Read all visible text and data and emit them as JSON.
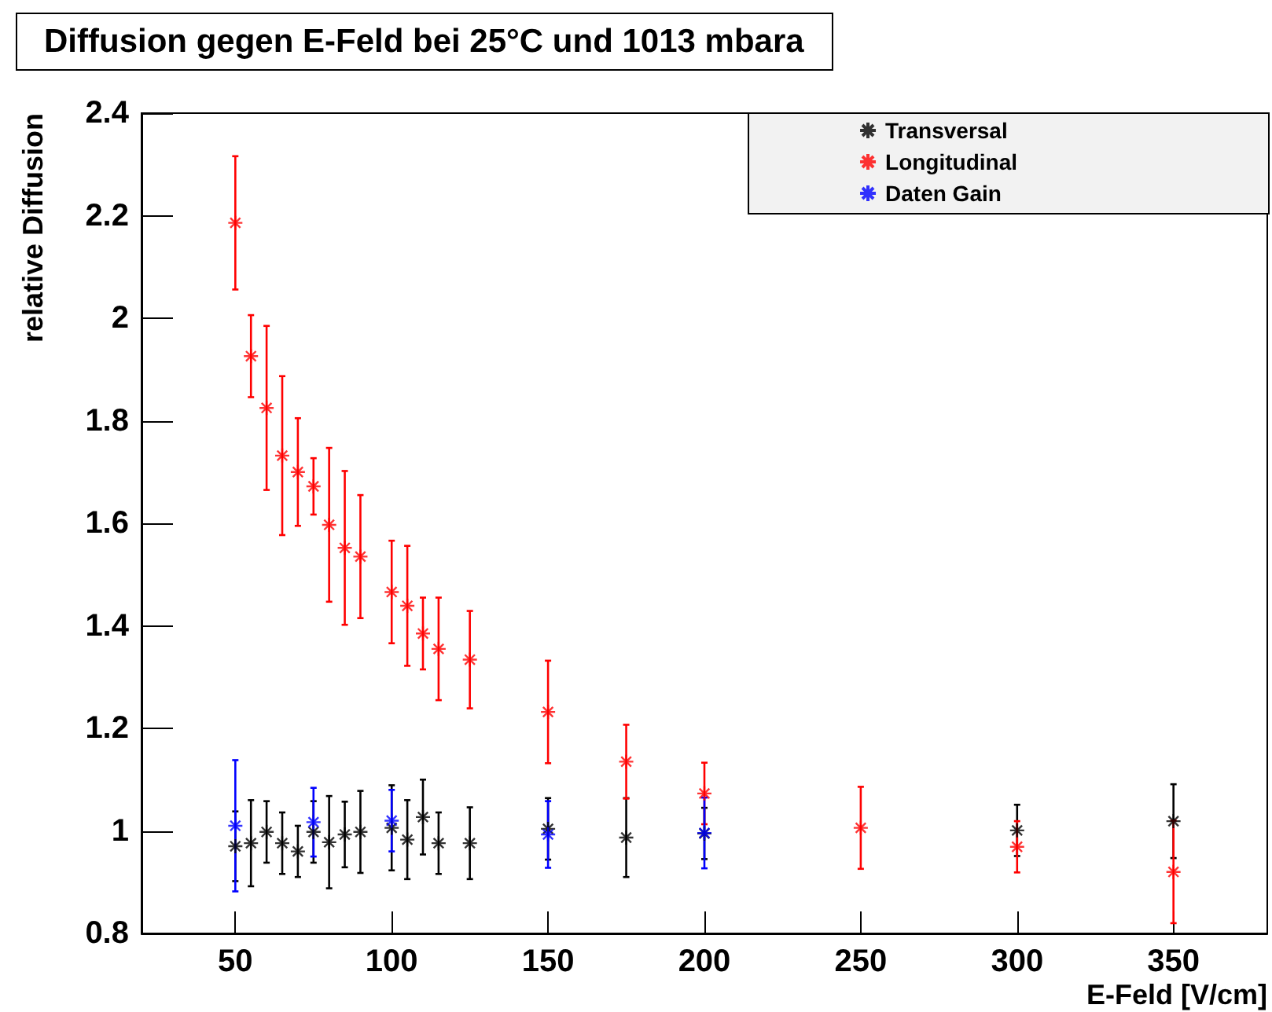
{
  "chart_data": {
    "type": "scatter",
    "title": "Diffusion gegen E-Feld bei 25°C und 1013 mbara",
    "xlabel": "E-Feld [V/cm]",
    "ylabel": "relative Diffusion",
    "xlim": [
      20,
      380
    ],
    "xticks": [
      50,
      100,
      150,
      200,
      250,
      300,
      350
    ],
    "ylim": [
      0.8,
      2.4
    ],
    "yticks": [
      0.8,
      1,
      1.2,
      1.4,
      1.6,
      1.8,
      2,
      2.2,
      2.4
    ],
    "legend": "top right",
    "grid": false,
    "marker": "cross",
    "series": [
      {
        "name": "Transversal",
        "color": "#000000",
        "x": [
          50,
          55,
          60,
          65,
          70,
          75,
          80,
          85,
          90,
          100,
          105,
          110,
          115,
          125,
          150,
          175,
          200,
          300,
          350
        ],
        "values": [
          0.97,
          0.976,
          0.998,
          0.976,
          0.96,
          0.998,
          0.978,
          0.993,
          0.998,
          1.006,
          0.983,
          1.027,
          0.976,
          0.976,
          1.004,
          0.987,
          0.995,
          1.001,
          1.019
        ],
        "errors": [
          0.068,
          0.084,
          0.06,
          0.06,
          0.05,
          0.06,
          0.09,
          0.064,
          0.08,
          0.083,
          0.077,
          0.073,
          0.06,
          0.07,
          0.06,
          0.077,
          0.05,
          0.05,
          0.072
        ]
      },
      {
        "name": "Longitudinal",
        "color": "#ff0000",
        "x": [
          50,
          55,
          60,
          65,
          70,
          75,
          80,
          85,
          90,
          100,
          105,
          110,
          115,
          125,
          150,
          175,
          200,
          250,
          300,
          350
        ],
        "values": [
          2.186,
          1.926,
          1.825,
          1.732,
          1.7,
          1.672,
          1.597,
          1.552,
          1.535,
          1.466,
          1.439,
          1.385,
          1.355,
          1.334,
          1.232,
          1.135,
          1.073,
          1.006,
          0.969,
          0.92
        ],
        "errors": [
          0.13,
          0.08,
          0.16,
          0.155,
          0.105,
          0.055,
          0.15,
          0.15,
          0.12,
          0.1,
          0.117,
          0.07,
          0.1,
          0.095,
          0.1,
          0.072,
          0.06,
          0.08,
          0.05,
          0.1
        ]
      },
      {
        "name": "Daten Gain",
        "color": "#0000ff",
        "x": [
          50,
          75,
          100,
          150,
          200
        ],
        "values": [
          1.01,
          1.017,
          1.02,
          0.993,
          0.996
        ],
        "errors": [
          0.128,
          0.067,
          0.06,
          0.065,
          0.069
        ]
      }
    ]
  }
}
